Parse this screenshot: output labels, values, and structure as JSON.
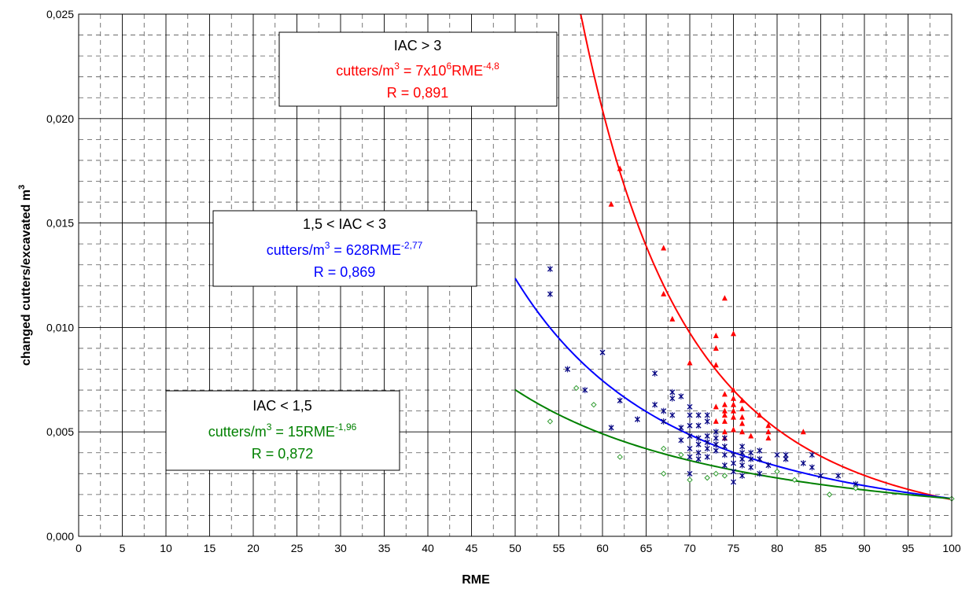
{
  "chart_data": {
    "type": "scatter",
    "xlabel": "RME",
    "ylabel": {
      "main": "changed cutters/excavated m",
      "sup": "3"
    },
    "xlim": [
      0,
      100
    ],
    "ylim": [
      0,
      0.025
    ],
    "x_ticks": [
      0,
      5,
      10,
      15,
      20,
      25,
      30,
      35,
      40,
      45,
      50,
      55,
      60,
      65,
      70,
      75,
      80,
      85,
      90,
      95,
      100
    ],
    "x_tick_labels": [
      "0",
      "5",
      "10",
      "15",
      "20",
      "25",
      "30",
      "35",
      "40",
      "45",
      "50",
      "55",
      "60",
      "65",
      "70",
      "75",
      "80",
      "85",
      "90",
      "95",
      "100"
    ],
    "y_ticks": [
      0,
      0.005,
      0.01,
      0.015,
      0.02,
      0.025
    ],
    "y_tick_labels": [
      "0,000",
      "0,005",
      "0,010",
      "0,015",
      "0,020",
      "0,025"
    ],
    "grid": {
      "major": true,
      "minor_dashed": true
    },
    "colors": {
      "red": "#ff0000",
      "blue": "#0000ff",
      "navy": "#000080",
      "green": "#008000",
      "green_marker": "#2e9b2e"
    },
    "series": [
      {
        "marker": "triangle",
        "color": "#ff0000",
        "points": [
          [
            61,
            0.0159
          ],
          [
            62,
            0.0176
          ],
          [
            67,
            0.0138
          ],
          [
            67,
            0.0116
          ],
          [
            68,
            0.0104
          ],
          [
            70,
            0.0083
          ],
          [
            73,
            0.0096
          ],
          [
            73,
            0.009
          ],
          [
            73,
            0.0082
          ],
          [
            73,
            0.0062
          ],
          [
            73,
            0.0055
          ],
          [
            74,
            0.0114
          ],
          [
            74,
            0.0068
          ],
          [
            74,
            0.0063
          ],
          [
            74,
            0.006
          ],
          [
            74,
            0.0058
          ],
          [
            74,
            0.0055
          ],
          [
            74,
            0.005
          ],
          [
            74,
            0.0047
          ],
          [
            75,
            0.0097
          ],
          [
            75,
            0.007
          ],
          [
            75,
            0.0066
          ],
          [
            75,
            0.0063
          ],
          [
            75,
            0.006
          ],
          [
            75,
            0.0057
          ],
          [
            75,
            0.0051
          ],
          [
            76,
            0.0065
          ],
          [
            76,
            0.0061
          ],
          [
            76,
            0.0057
          ],
          [
            76,
            0.0054
          ],
          [
            76,
            0.005
          ],
          [
            77,
            0.0048
          ],
          [
            78,
            0.0058
          ],
          [
            79,
            0.0053
          ],
          [
            79,
            0.005
          ],
          [
            79,
            0.0047
          ],
          [
            83,
            0.005
          ]
        ]
      },
      {
        "marker": "x",
        "color": "#000080",
        "points": [
          [
            54,
            0.0128
          ],
          [
            54,
            0.0116
          ],
          [
            56,
            0.008
          ],
          [
            58,
            0.007
          ],
          [
            60,
            0.0088
          ],
          [
            61,
            0.0052
          ],
          [
            62,
            0.0065
          ],
          [
            64,
            0.0056
          ],
          [
            66,
            0.0078
          ],
          [
            66,
            0.0063
          ],
          [
            67,
            0.006
          ],
          [
            67,
            0.0055
          ],
          [
            68,
            0.0069
          ],
          [
            68,
            0.0066
          ],
          [
            68,
            0.0058
          ],
          [
            69,
            0.0067
          ],
          [
            69,
            0.0052
          ],
          [
            69,
            0.0046
          ],
          [
            70,
            0.0062
          ],
          [
            70,
            0.0058
          ],
          [
            70,
            0.0053
          ],
          [
            70,
            0.0048
          ],
          [
            70,
            0.0042
          ],
          [
            70,
            0.0038
          ],
          [
            70,
            0.003
          ],
          [
            71,
            0.0058
          ],
          [
            71,
            0.0053
          ],
          [
            71,
            0.0047
          ],
          [
            71,
            0.0044
          ],
          [
            71,
            0.004
          ],
          [
            71,
            0.0037
          ],
          [
            72,
            0.0058
          ],
          [
            72,
            0.0055
          ],
          [
            72,
            0.0048
          ],
          [
            72,
            0.0045
          ],
          [
            72,
            0.0042
          ],
          [
            72,
            0.0038
          ],
          [
            73,
            0.005
          ],
          [
            73,
            0.0047
          ],
          [
            73,
            0.0044
          ],
          [
            73,
            0.0041
          ],
          [
            74,
            0.0047
          ],
          [
            74,
            0.0043
          ],
          [
            74,
            0.0039
          ],
          [
            74,
            0.0034
          ],
          [
            75,
            0.0039
          ],
          [
            75,
            0.0035
          ],
          [
            75,
            0.0031
          ],
          [
            75,
            0.0026
          ],
          [
            76,
            0.0043
          ],
          [
            76,
            0.004
          ],
          [
            76,
            0.0037
          ],
          [
            76,
            0.0034
          ],
          [
            76,
            0.0029
          ],
          [
            77,
            0.004
          ],
          [
            77,
            0.0037
          ],
          [
            77,
            0.0033
          ],
          [
            78,
            0.0041
          ],
          [
            78,
            0.0037
          ],
          [
            78,
            0.003
          ],
          [
            79,
            0.0034
          ],
          [
            80,
            0.0039
          ],
          [
            81,
            0.0039
          ],
          [
            81,
            0.0037
          ],
          [
            83,
            0.0035
          ],
          [
            84,
            0.0039
          ],
          [
            84,
            0.0033
          ],
          [
            85,
            0.0029
          ],
          [
            87,
            0.0029
          ],
          [
            89,
            0.0025
          ]
        ]
      },
      {
        "marker": "diamond",
        "color": "#2e9b2e",
        "points": [
          [
            54,
            0.0055
          ],
          [
            57,
            0.0071
          ],
          [
            59,
            0.0063
          ],
          [
            62,
            0.0038
          ],
          [
            67,
            0.0042
          ],
          [
            67,
            0.003
          ],
          [
            69,
            0.0039
          ],
          [
            70,
            0.0027
          ],
          [
            72,
            0.0028
          ],
          [
            73,
            0.003
          ],
          [
            74,
            0.0029
          ],
          [
            80,
            0.0031
          ],
          [
            82,
            0.0027
          ],
          [
            86,
            0.002
          ],
          [
            89,
            0.0023
          ],
          [
            100,
            0.0018
          ]
        ]
      }
    ],
    "trendlines": [
      {
        "color": "#ff0000",
        "a": 7000000,
        "b": -4.8,
        "x_range": [
          57.5,
          100
        ]
      },
      {
        "color": "#0000ff",
        "a": 628,
        "b": -2.77,
        "x_range": [
          50,
          100
        ]
      },
      {
        "color": "#008000",
        "a": 15,
        "b": -1.96,
        "x_range": [
          50,
          100
        ]
      }
    ],
    "annotations": [
      {
        "title": "IAC > 3",
        "formula_prefix": "cutters/m",
        "formula_sup1": "3",
        "formula_mid": " = 7x10",
        "formula_sup2": "6",
        "formula_mid2": "RME",
        "formula_sup3": "-4,8",
        "r": "R = 0,891",
        "color": "#ff0000"
      },
      {
        "title": "1,5 < IAC < 3",
        "formula_prefix": "cutters/m",
        "formula_sup1": "3",
        "formula_mid": " = 628RME",
        "formula_sup3": "-2,77",
        "r": "R = 0,869",
        "color": "#0000ff"
      },
      {
        "title": "IAC < 1,5",
        "formula_prefix": "cutters/m",
        "formula_sup1": "3",
        "formula_mid": " = 15RME",
        "formula_sup3": "-1,96",
        "r": "R = 0,872",
        "color": "#008000"
      }
    ]
  }
}
